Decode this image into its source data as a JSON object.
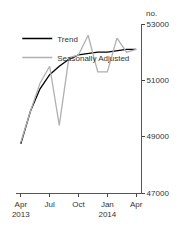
{
  "chart_data": {
    "type": "line",
    "ylabel": "no.",
    "categories": [
      "Apr\n2013",
      null,
      null,
      "Jul",
      null,
      null,
      "Oct",
      null,
      null,
      "Jan\n2014",
      null,
      null,
      "Apr"
    ],
    "series": [
      {
        "name": "Trend",
        "color": "#000000",
        "values": [
          48750,
          49900,
          50700,
          51200,
          51500,
          51750,
          51900,
          51950,
          52000,
          52000,
          52050,
          52100,
          52100
        ]
      },
      {
        "name": "Seasonally Adjusted",
        "color": "#b0b0b0",
        "values": [
          48800,
          49900,
          50900,
          51500,
          49400,
          51800,
          51900,
          52600,
          51300,
          51300,
          52500,
          52000,
          52100
        ]
      }
    ],
    "ylim": [
      47000,
      53000
    ],
    "yticks": [
      47000,
      49000,
      51000,
      53000
    ],
    "grid": false,
    "legend": "top-left"
  }
}
